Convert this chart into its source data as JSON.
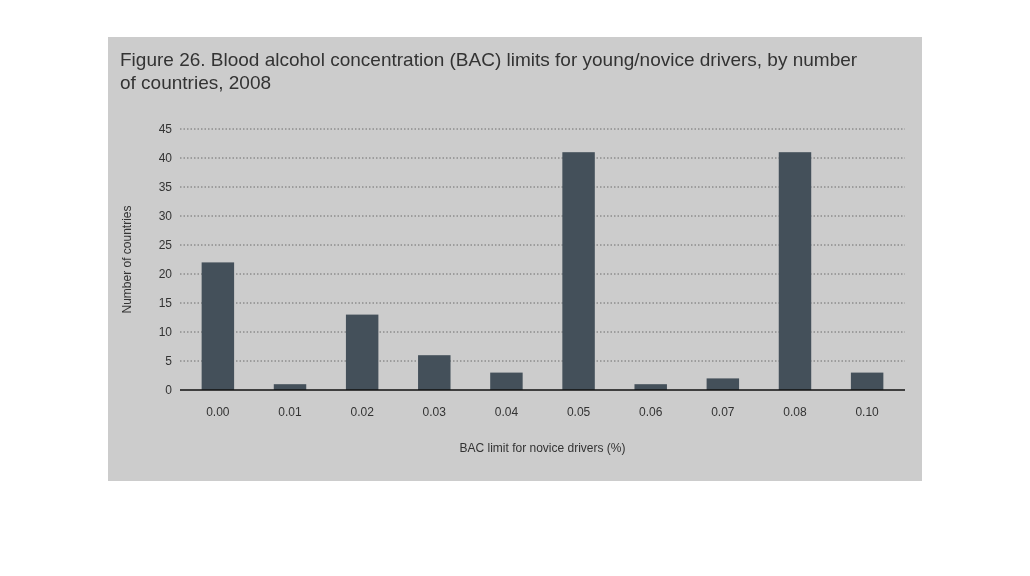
{
  "chart_data": {
    "type": "bar",
    "title": "Figure 26. Blood alcohol concentration (BAC) limits for young/novice drivers, by number of countries, 2008",
    "xlabel": "BAC limit for novice drivers (%)",
    "ylabel": "Number of countries",
    "categories": [
      "0.00",
      "0.01",
      "0.02",
      "0.03",
      "0.04",
      "0.05",
      "0.06",
      "0.07",
      "0.08",
      "0.10"
    ],
    "values": [
      22,
      1,
      13,
      6,
      3,
      41,
      1,
      2,
      41,
      3
    ],
    "color": "#44505a",
    "ylim": [
      0,
      45
    ],
    "yticks": [
      0,
      5,
      10,
      15,
      20,
      25,
      30,
      35,
      40,
      45
    ],
    "grid": "y"
  }
}
